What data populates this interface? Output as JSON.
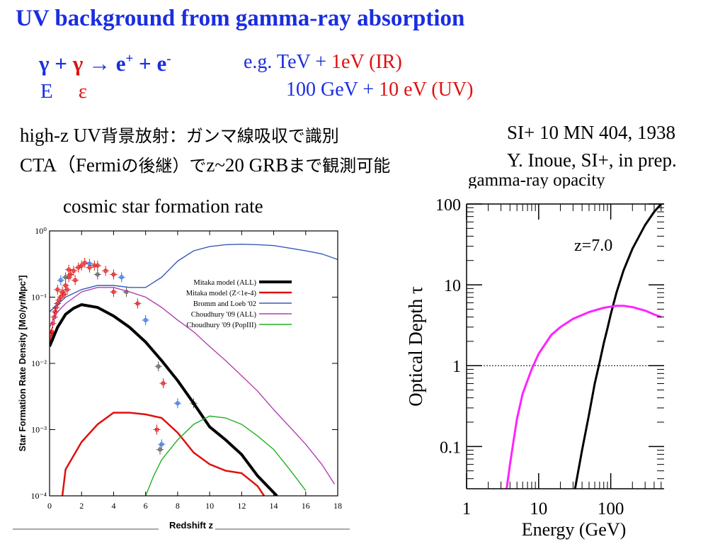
{
  "slide": {
    "title": "UV background from gamma-ray absorption",
    "equation": {
      "g1": "γ",
      "plus1": " + ",
      "g2": "γ",
      "arrow": " → e",
      "sup1": "+",
      "plus2": " + e",
      "sup2": "-"
    },
    "symbols": {
      "E": "E",
      "eps": "ε"
    },
    "example1": {
      "a": "e.g. TeV + ",
      "b": "1eV (IR)"
    },
    "example2": {
      "a": "100 GeV + ",
      "b": "10 eV (UV)"
    },
    "line1": {
      "a": "high-z UV",
      "b": "背景放射：ガンマ線吸収で識別"
    },
    "line2": {
      "a": "CTA（",
      "b": "Fermi",
      "c": "の後継）で",
      "d": "z~20 GRB",
      "e": "まで観測可能"
    },
    "ref1": "SI+ 10 MN 404, 1938",
    "ref2": "Y. Inoue, SI+, in prep.",
    "left_caption": "cosmic star formation rate",
    "right_caption": "gamma-ray opacity"
  },
  "chart_data": [
    {
      "type": "line",
      "xlabel": "Redshift z",
      "ylabel": "Star Formation Rate Density [M⊙/yr/Mpc³]",
      "xlim": [
        0,
        18
      ],
      "ylim": [
        0.0001,
        1
      ],
      "yscale": "log",
      "xticks": [
        "0",
        "2",
        "4",
        "6",
        "8",
        "10",
        "12",
        "14",
        "16",
        "18"
      ],
      "yticks": [
        "10⁰",
        "10⁻¹",
        "10⁻²",
        "10⁻³",
        "10⁻⁴"
      ],
      "legend_position": "right",
      "series": [
        {
          "name": "Mitaka model (ALL)",
          "color": "#000000",
          "x": [
            0,
            0.5,
            1,
            1.5,
            2,
            3,
            4,
            5,
            6,
            7,
            8,
            9,
            10,
            11,
            12,
            13,
            14.2
          ],
          "y": [
            0.018,
            0.035,
            0.055,
            0.068,
            0.077,
            0.07,
            0.052,
            0.035,
            0.021,
            0.011,
            0.0055,
            0.0025,
            0.0011,
            0.0007,
            0.00042,
            0.0002,
            0.0001
          ]
        },
        {
          "name": "Mitaka model (Z<1e-4)",
          "color": "#e01010",
          "x": [
            0.8,
            1,
            2,
            3,
            4,
            5,
            6,
            7,
            8,
            9,
            10,
            11,
            12,
            13,
            13.4
          ],
          "y": [
            0.0001,
            0.00025,
            0.00065,
            0.0012,
            0.0018,
            0.0018,
            0.0017,
            0.0015,
            0.0009,
            0.00045,
            0.0003,
            0.00024,
            0.00022,
            0.00014,
            0.0001
          ]
        },
        {
          "name": "Bromm and Loeb '02",
          "color": "#3a5ab8",
          "x": [
            0,
            1,
            2,
            3,
            4,
            5,
            6,
            7,
            8,
            9,
            10,
            11,
            12,
            13,
            14,
            15,
            16,
            17,
            18
          ],
          "y": [
            0.06,
            0.1,
            0.13,
            0.15,
            0.15,
            0.14,
            0.14,
            0.2,
            0.35,
            0.5,
            0.58,
            0.62,
            0.63,
            0.62,
            0.6,
            0.55,
            0.5,
            0.45,
            0.37
          ]
        },
        {
          "name": "Choudhury '09 (ALL)",
          "color": "#b040b0",
          "x": [
            0,
            0.5,
            1,
            2,
            3,
            4,
            5,
            6,
            7,
            8,
            9,
            10,
            11,
            12,
            13,
            14,
            15,
            16,
            17,
            17.8
          ],
          "y": [
            0.035,
            0.06,
            0.08,
            0.12,
            0.14,
            0.14,
            0.12,
            0.1,
            0.07,
            0.045,
            0.03,
            0.018,
            0.011,
            0.0065,
            0.0038,
            0.002,
            0.0011,
            0.0006,
            0.0003,
            0.00015
          ]
        },
        {
          "name": "Choudhury '09 (PopIII)",
          "color": "#22b022",
          "x": [
            6,
            6.5,
            7,
            8,
            9,
            10,
            11,
            12,
            13,
            14,
            15,
            16
          ],
          "y": [
            0.0001,
            0.0002,
            0.00035,
            0.0007,
            0.0012,
            0.0016,
            0.0015,
            0.0012,
            0.0008,
            0.0005,
            0.00025,
            0.00012
          ]
        }
      ],
      "observations": {
        "x": [
          0.05,
          0.1,
          0.15,
          0.2,
          0.3,
          0.35,
          0.4,
          0.5,
          0.6,
          0.7,
          0.8,
          0.9,
          1.0,
          1.1,
          1.2,
          1.3,
          1.5,
          1.6,
          1.8,
          2.0,
          2.2,
          2.5,
          2.8,
          3.0,
          3.5,
          4.0,
          0.5,
          0.7,
          1.0,
          1.2,
          2.5,
          3.0,
          4.0,
          4.5,
          4.8,
          5.5,
          6.0,
          6.8,
          7.1,
          8.0,
          9.0,
          6.7,
          7.0,
          6.9
        ],
        "y": [
          0.022,
          0.028,
          0.03,
          0.04,
          0.05,
          0.06,
          0.07,
          0.08,
          0.09,
          0.1,
          0.12,
          0.11,
          0.15,
          0.13,
          0.2,
          0.22,
          0.25,
          0.18,
          0.28,
          0.3,
          0.33,
          0.28,
          0.3,
          0.3,
          0.25,
          0.22,
          0.13,
          0.18,
          0.2,
          0.26,
          0.32,
          0.22,
          0.12,
          0.2,
          0.12,
          0.08,
          0.045,
          0.009,
          0.005,
          0.0025,
          0.0025,
          0.001,
          0.0006,
          0.0005
        ]
      }
    },
    {
      "type": "line",
      "xlabel": "Energy (GeV)",
      "ylabel": "Optical Depth τ",
      "xscale": "log",
      "yscale": "log",
      "xlim": [
        1,
        550
      ],
      "ylim": [
        0.03,
        100
      ],
      "xticks": [
        "1",
        "10",
        "100"
      ],
      "yticks": [
        "100",
        "10",
        "1",
        "0.1"
      ],
      "annotation": "z=7.0",
      "reference_line": 1,
      "series": [
        {
          "color": "#000000",
          "x": [
            32,
            40,
            50,
            60,
            70,
            80,
            90,
            100,
            120,
            150,
            200,
            300,
            400,
            550
          ],
          "y": [
            0.03,
            0.09,
            0.25,
            0.6,
            1.1,
            1.9,
            2.9,
            4.3,
            8,
            15,
            28,
            55,
            80,
            110
          ]
        },
        {
          "color": "#ff22ff",
          "x": [
            3.6,
            4,
            4.5,
            5,
            6,
            8,
            10,
            15,
            20,
            30,
            50,
            80,
            120,
            150,
            200,
            300,
            400,
            500
          ],
          "y": [
            0.03,
            0.06,
            0.12,
            0.22,
            0.45,
            0.9,
            1.4,
            2.4,
            3.0,
            3.8,
            4.6,
            5.2,
            5.5,
            5.5,
            5.3,
            4.8,
            4.3,
            4.0
          ]
        }
      ]
    }
  ]
}
